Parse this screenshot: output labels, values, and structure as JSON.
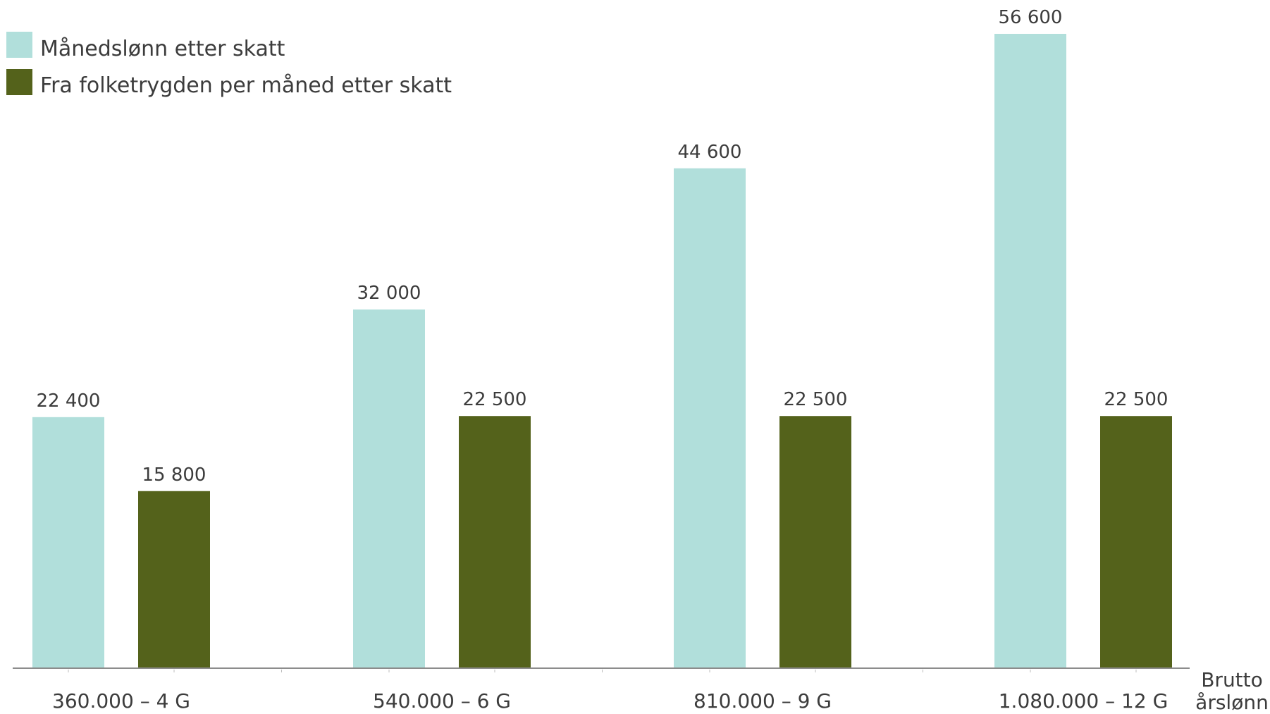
{
  "chart_data": {
    "type": "bar",
    "categories": [
      "360.000 – 4 G",
      "540.000 – 6 G",
      "810.000 – 9 G",
      "1.080.000 – 12 G"
    ],
    "series": [
      {
        "name": "Månedslønn etter skatt",
        "values": [
          22400,
          32000,
          44600,
          56600
        ],
        "value_labels": [
          "22 400",
          "32 000",
          "44 600",
          "56 600"
        ],
        "color": "#b1dfdb"
      },
      {
        "name": "Fra folketrygden per måned etter skatt",
        "values": [
          15800,
          22500,
          22500,
          22500
        ],
        "value_labels": [
          "15 800",
          "22 500",
          "22 500",
          "22 500"
        ],
        "color": "#54621b"
      }
    ],
    "xlabel": [
      "Brutto",
      "årslønn"
    ],
    "ylim": [
      0,
      56600
    ],
    "grid": false,
    "legend_position": "top-left"
  }
}
